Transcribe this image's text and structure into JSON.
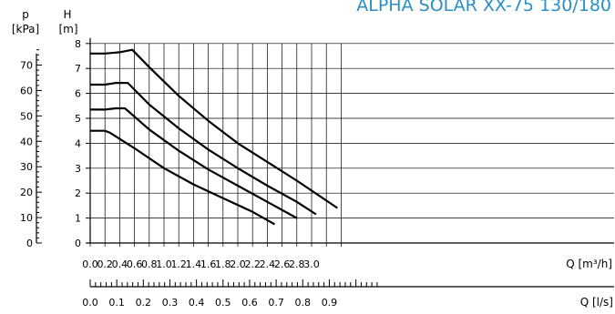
{
  "chart_data": {
    "type": "line",
    "title": "ALPHA SOLAR XX-75 130/180",
    "y_axis_left": {
      "symbol": "p",
      "unit": "[kPa]",
      "ticks": [
        "0",
        "10",
        "20",
        "30",
        "40",
        "50",
        "60",
        "70"
      ],
      "range": [
        0,
        80
      ]
    },
    "y_axis_right": {
      "symbol": "H",
      "unit": "[m]",
      "ticks": [
        "0",
        "1",
        "2",
        "3",
        "4",
        "5",
        "6",
        "7",
        "8"
      ],
      "range": [
        0,
        8
      ]
    },
    "x_axis_top": {
      "label": "Q [m³/h]",
      "ticks": [
        "0.0",
        "0.2",
        "0.4",
        "0.6",
        "0.8",
        "1.0",
        "1.2",
        "1.4",
        "1.6",
        "1.8",
        "2.0",
        "2.2",
        "2.4",
        "2.6",
        "2.8",
        "3.0"
      ],
      "range": [
        0,
        3.4
      ]
    },
    "x_axis_bottom": {
      "label": "Q [l/s]",
      "ticks": [
        "0.0",
        "0.1",
        "0.2",
        "0.3",
        "0.4",
        "0.5",
        "0.6",
        "0.7",
        "0.8",
        "0.9"
      ]
    },
    "series": [
      {
        "points": [
          [
            0.0,
            7.6
          ],
          [
            0.2,
            7.6
          ],
          [
            0.4,
            7.65
          ],
          [
            0.57,
            7.75
          ],
          [
            0.8,
            7.05
          ],
          [
            1.2,
            5.9
          ],
          [
            1.6,
            4.9
          ],
          [
            2.0,
            4.0
          ],
          [
            2.4,
            3.25
          ],
          [
            2.8,
            2.5
          ],
          [
            3.1,
            1.9
          ],
          [
            3.35,
            1.4
          ]
        ]
      },
      {
        "points": [
          [
            0.0,
            6.35
          ],
          [
            0.2,
            6.35
          ],
          [
            0.35,
            6.42
          ],
          [
            0.51,
            6.42
          ],
          [
            0.8,
            5.55
          ],
          [
            1.2,
            4.6
          ],
          [
            1.6,
            3.75
          ],
          [
            2.0,
            3.0
          ],
          [
            2.4,
            2.3
          ],
          [
            2.8,
            1.65
          ],
          [
            3.06,
            1.15
          ]
        ]
      },
      {
        "points": [
          [
            0.0,
            5.35
          ],
          [
            0.2,
            5.35
          ],
          [
            0.35,
            5.4
          ],
          [
            0.47,
            5.4
          ],
          [
            0.8,
            4.55
          ],
          [
            1.2,
            3.7
          ],
          [
            1.6,
            2.95
          ],
          [
            2.0,
            2.3
          ],
          [
            2.4,
            1.65
          ],
          [
            2.8,
            1.0
          ]
        ]
      },
      {
        "points": [
          [
            0.0,
            4.5
          ],
          [
            0.2,
            4.5
          ],
          [
            0.27,
            4.42
          ],
          [
            0.6,
            3.8
          ],
          [
            1.0,
            3.0
          ],
          [
            1.4,
            2.35
          ],
          [
            1.8,
            1.8
          ],
          [
            2.2,
            1.25
          ],
          [
            2.5,
            0.75
          ]
        ]
      }
    ]
  }
}
